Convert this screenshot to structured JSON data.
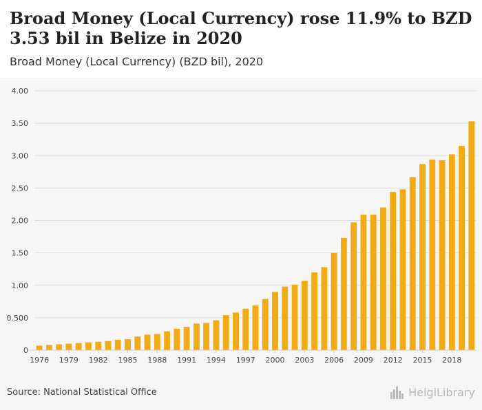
{
  "header": {
    "title": "Broad Money (Local Currency) rose 11.9% to BZD 3.53 bil in Belize in 2020",
    "subtitle": "Broad Money (Local Currency) (BZD bil), 2020"
  },
  "footer": {
    "source": "Source: National Statistical Office",
    "logo_text": "HelgiLibrary"
  },
  "colors": {
    "bar": "#f2aa17",
    "grid": "#e0e0e0",
    "panel": "#f6f6f6"
  },
  "chart_data": {
    "type": "bar",
    "categories": [
      "1976",
      "1977",
      "1978",
      "1979",
      "1980",
      "1981",
      "1982",
      "1983",
      "1984",
      "1985",
      "1986",
      "1987",
      "1988",
      "1989",
      "1990",
      "1991",
      "1992",
      "1993",
      "1994",
      "1995",
      "1996",
      "1997",
      "1998",
      "1999",
      "2000",
      "2001",
      "2002",
      "2003",
      "2004",
      "2005",
      "2006",
      "2007",
      "2008",
      "2009",
      "2010",
      "2011",
      "2012",
      "2013",
      "2014",
      "2015",
      "2016",
      "2017",
      "2018",
      "2019",
      "2020"
    ],
    "x_tick_labels": [
      "1976",
      "1979",
      "1982",
      "1985",
      "1988",
      "1991",
      "1994",
      "1997",
      "2000",
      "2003",
      "2006",
      "2009",
      "2012",
      "2015",
      "2018"
    ],
    "values": [
      0.07,
      0.08,
      0.09,
      0.1,
      0.11,
      0.12,
      0.13,
      0.14,
      0.16,
      0.17,
      0.21,
      0.24,
      0.25,
      0.29,
      0.33,
      0.36,
      0.41,
      0.42,
      0.46,
      0.54,
      0.58,
      0.64,
      0.69,
      0.79,
      0.9,
      0.98,
      1.01,
      1.07,
      1.2,
      1.28,
      1.5,
      1.73,
      1.97,
      2.09,
      2.09,
      2.2,
      2.44,
      2.48,
      2.67,
      2.87,
      2.94,
      2.93,
      3.02,
      3.15,
      3.53
    ],
    "y_ticks": [
      "0",
      "0.500",
      "1.00",
      "1.50",
      "2.00",
      "2.50",
      "3.00",
      "3.50",
      "4.00"
    ],
    "ylim": [
      0,
      4
    ],
    "grid": true,
    "legend": "none"
  }
}
